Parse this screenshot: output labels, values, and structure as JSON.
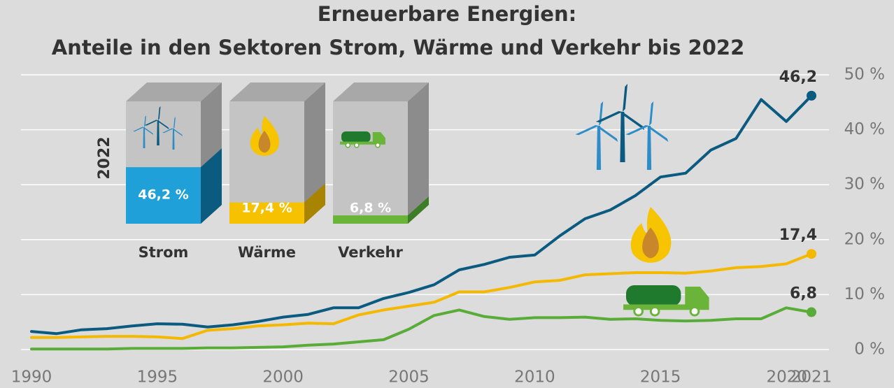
{
  "chart_data": [
    {
      "type": "line",
      "title": "Erneuerbare Energien:",
      "subtitle": "Anteile in den Sektoren Strom, Wärme und Verkehr bis 2022",
      "x": [
        1990,
        1991,
        1992,
        1993,
        1994,
        1995,
        1996,
        1997,
        1998,
        1999,
        2000,
        2001,
        2002,
        2003,
        2004,
        2005,
        2006,
        2007,
        2008,
        2009,
        2010,
        2011,
        2012,
        2013,
        2014,
        2015,
        2016,
        2017,
        2018,
        2019,
        2020,
        2021
      ],
      "xlim": [
        1990,
        2021
      ],
      "xticks": [
        1990,
        1995,
        2000,
        2005,
        2010,
        2015,
        2020,
        2021
      ],
      "ylim": [
        0,
        50
      ],
      "yticks": [
        {
          "value": 0,
          "label": "0 %"
        },
        {
          "value": 10,
          "label": "10 %"
        },
        {
          "value": 20,
          "label": "20 %"
        },
        {
          "value": 30,
          "label": "30 %"
        },
        {
          "value": 40,
          "label": "40 %"
        },
        {
          "value": 50,
          "label": "50 %"
        }
      ],
      "grid": true,
      "series": [
        {
          "name": "Strom",
          "color": "#0b5a80",
          "values": [
            3.3,
            2.9,
            3.6,
            3.8,
            4.3,
            4.7,
            4.6,
            4.1,
            4.5,
            5.1,
            5.9,
            6.4,
            7.6,
            7.6,
            9.3,
            10.4,
            11.8,
            14.5,
            15.5,
            16.8,
            17.2,
            20.7,
            23.8,
            25.4,
            28,
            31.4,
            32.1,
            36.3,
            38.4,
            45.5,
            41.5,
            46.2
          ],
          "value_labels": [
            null,
            null,
            null,
            null,
            null,
            null,
            null,
            null,
            null,
            null,
            null,
            null,
            null,
            null,
            null,
            null,
            null,
            null,
            null,
            null,
            null,
            null,
            null,
            null,
            null,
            null,
            null,
            null,
            null,
            null,
            null,
            "46,2"
          ]
        },
        {
          "name": "Wärme",
          "color": "#f5b800",
          "values": [
            2.2,
            2.2,
            2.3,
            2.4,
            2.4,
            2.3,
            2.0,
            3.5,
            3.8,
            4.3,
            4.5,
            4.8,
            4.7,
            6.3,
            7.2,
            7.9,
            8.6,
            10.5,
            10.5,
            11.3,
            12.3,
            12.6,
            13.6,
            13.8,
            14.0,
            14.0,
            13.9,
            14.3,
            14.9,
            15.1,
            15.6,
            17.4
          ],
          "value_labels": [
            null,
            null,
            null,
            null,
            null,
            null,
            null,
            null,
            null,
            null,
            null,
            null,
            null,
            null,
            null,
            null,
            null,
            null,
            null,
            null,
            null,
            null,
            null,
            null,
            null,
            null,
            null,
            null,
            null,
            null,
            null,
            "17,4"
          ]
        },
        {
          "name": "Verkehr",
          "color": "#5aac38",
          "values": [
            0.1,
            0.1,
            0.1,
            0.1,
            0.2,
            0.2,
            0.2,
            0.3,
            0.3,
            0.4,
            0.5,
            0.8,
            1.0,
            1.4,
            1.8,
            3.7,
            6.2,
            7.2,
            6.0,
            5.5,
            5.8,
            5.8,
            5.9,
            5.5,
            5.6,
            5.3,
            5.2,
            5.3,
            5.6,
            5.6,
            7.6,
            6.8
          ],
          "value_labels": [
            null,
            null,
            null,
            null,
            null,
            null,
            null,
            null,
            null,
            null,
            null,
            null,
            null,
            null,
            null,
            null,
            null,
            null,
            null,
            null,
            null,
            null,
            null,
            null,
            null,
            null,
            null,
            null,
            null,
            null,
            null,
            "6,8"
          ]
        }
      ]
    },
    {
      "type": "bar3d",
      "title": "2022",
      "categories": [
        "Strom",
        "Wärme",
        "Verkehr"
      ],
      "values": [
        46.2,
        17.4,
        6.8
      ],
      "value_labels": [
        "46,2 %",
        "17,4 %",
        "6,8 %"
      ],
      "ylim": [
        0,
        100
      ],
      "colors": [
        "#1fa0d8",
        "#f6c200",
        "#6ab43a"
      ],
      "side_colors": [
        "#0b5a80",
        "#a88400",
        "#3d7d25"
      ]
    }
  ]
}
